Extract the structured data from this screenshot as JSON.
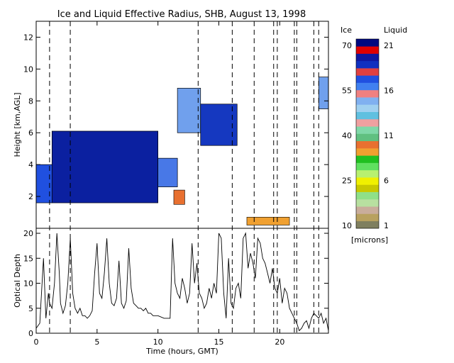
{
  "chart_data": [
    {
      "type": "heatmap",
      "title": "Ice and Liquid Effective Radius, SHB, August 13, 1998",
      "xlabel": "",
      "ylabel": "Height [km,AGL]",
      "xlim": [
        0,
        24
      ],
      "ylim": [
        0,
        13
      ],
      "xticks": [
        "0",
        "5",
        "10",
        "15",
        "20"
      ],
      "yticks": [
        "2",
        "4",
        "6",
        "8",
        "10",
        "12"
      ],
      "vertical_markers_hours": [
        1.1,
        2.8,
        13.3,
        16.1,
        17.9,
        19.5,
        19.8,
        21.2,
        21.4,
        22.8,
        23.2
      ],
      "ice_regions": [
        {
          "t0": 0.0,
          "t1": 1.3,
          "base_km": 1.6,
          "top_km": 4.0,
          "re_um": 55
        },
        {
          "t0": 1.3,
          "t1": 10.0,
          "base_km": 1.6,
          "top_km": 6.1,
          "re_um": 65
        },
        {
          "t0": 10.0,
          "t1": 11.6,
          "base_km": 2.6,
          "top_km": 4.4,
          "re_um": 50
        },
        {
          "t0": 11.6,
          "t1": 13.5,
          "base_km": 6.0,
          "top_km": 8.8,
          "re_um": 45
        },
        {
          "t0": 13.5,
          "t1": 16.5,
          "base_km": 5.2,
          "top_km": 7.8,
          "re_um": 60
        },
        {
          "t0": 23.2,
          "t1": 24.0,
          "base_km": 7.5,
          "top_km": 9.5,
          "re_um": 45
        }
      ],
      "liquid_regions": [
        {
          "t0": 11.3,
          "t1": 12.2,
          "base_km": 1.5,
          "top_km": 2.4,
          "re_um": 11
        },
        {
          "t0": 17.3,
          "t1": 20.8,
          "base_km": 0.2,
          "top_km": 0.7,
          "re_um": 9
        }
      ]
    },
    {
      "type": "line",
      "title": "",
      "xlabel": "Time (hours, GMT)",
      "ylabel": "Optical Depth",
      "xlim": [
        0,
        24
      ],
      "ylim": [
        0,
        21
      ],
      "xticks": [
        "0",
        "5",
        "10",
        "15",
        "20"
      ],
      "yticks": [
        "0",
        "5",
        "10",
        "15",
        "20"
      ],
      "series": [
        {
          "x": [
            0.0,
            0.3,
            0.6,
            0.8,
            1.0,
            1.1,
            1.3,
            1.5,
            1.7,
            1.9,
            2.0,
            2.2,
            2.4,
            2.6,
            2.8,
            3.0,
            3.2,
            3.4,
            3.6,
            3.8,
            4.0,
            4.2,
            4.4,
            4.6,
            4.8,
            5.0,
            5.2,
            5.4,
            5.6,
            5.8,
            6.0,
            6.2,
            6.4,
            6.6,
            6.8,
            7.0,
            7.2,
            7.4,
            7.6,
            7.8,
            8.0,
            8.2,
            8.4,
            8.6,
            8.8,
            9.0,
            9.2,
            9.4,
            9.6,
            9.8,
            10.0,
            10.5,
            11.0,
            11.2,
            11.4,
            11.6,
            11.8,
            12.0,
            12.2,
            12.4,
            12.6,
            12.8,
            13.0,
            13.2,
            13.4,
            13.6,
            13.8,
            14.0,
            14.2,
            14.4,
            14.6,
            14.8,
            15.0,
            15.2,
            15.4,
            15.6,
            15.8,
            16.0,
            16.2,
            16.4,
            16.6,
            16.8,
            17.0,
            17.2,
            17.4,
            17.6,
            17.8,
            18.0,
            18.2,
            18.4,
            18.6,
            18.8,
            19.0,
            19.2,
            19.4,
            19.6,
            19.8,
            20.0,
            20.2,
            20.4,
            20.6,
            20.8,
            21.0,
            21.2,
            21.4,
            21.6,
            21.8,
            22.0,
            22.2,
            22.4,
            22.6,
            22.8,
            23.0,
            23.2,
            23.4,
            23.6,
            23.8,
            24.0
          ],
          "y": [
            1.0,
            2.0,
            15.0,
            3.0,
            8.0,
            6.0,
            5.0,
            10.0,
            20.0,
            12.0,
            6.0,
            4.0,
            5.5,
            10.0,
            19.0,
            8.0,
            5.0,
            4.0,
            5.0,
            3.5,
            3.5,
            3.0,
            3.5,
            4.5,
            12.0,
            18.0,
            8.0,
            7.0,
            12.0,
            19.0,
            10.0,
            6.0,
            5.5,
            7.0,
            14.5,
            6.0,
            5.0,
            6.5,
            17.0,
            9.0,
            6.0,
            5.5,
            5.0,
            5.0,
            4.5,
            5.0,
            4.0,
            4.0,
            3.5,
            3.5,
            3.5,
            3.0,
            3.0,
            19.0,
            10.0,
            8.0,
            7.0,
            11.0,
            9.0,
            6.0,
            8.0,
            18.0,
            10.0,
            14.0,
            8.0,
            7.0,
            5.0,
            6.0,
            9.0,
            7.0,
            10.0,
            8.0,
            20.0,
            19.0,
            8.0,
            3.0,
            15.0,
            6.0,
            5.0,
            9.0,
            10.0,
            7.0,
            19.0,
            20.0,
            13.0,
            16.0,
            14.0,
            11.0,
            19.0,
            18.0,
            15.0,
            14.0,
            12.0,
            10.0,
            13.0,
            9.0,
            8.0,
            11.0,
            6.0,
            9.0,
            8.0,
            5.0,
            4.0,
            3.0,
            2.0,
            0.5,
            1.0,
            2.0,
            2.5,
            1.0,
            3.0,
            4.0,
            3.5,
            3.0,
            4.0,
            2.0,
            3.0,
            0.5
          ]
        }
      ]
    },
    {
      "type": "colorbar",
      "title": "",
      "label_ice": "Ice",
      "label_liquid": "Liquid",
      "units": "[microns]",
      "ice_ticks": [
        "70",
        "55",
        "40",
        "25",
        "10"
      ],
      "liquid_ticks": [
        "21",
        "16",
        "11",
        "6",
        "1"
      ],
      "colors": [
        "#7f7f5f",
        "#b8a15f",
        "#c9ad9b",
        "#b8e0a0",
        "#8fe088",
        "#c8c800",
        "#f0f000",
        "#b8f070",
        "#60e060",
        "#20c020",
        "#f0a030",
        "#e87030",
        "#60c080",
        "#80d8a8",
        "#f0a0a0",
        "#60c0e0",
        "#a0d0f0",
        "#80b0f0",
        "#f08080",
        "#4080f0",
        "#2050e0",
        "#e04040",
        "#1030c0",
        "#1018a0",
        "#e00000",
        "#000880"
      ]
    }
  ]
}
